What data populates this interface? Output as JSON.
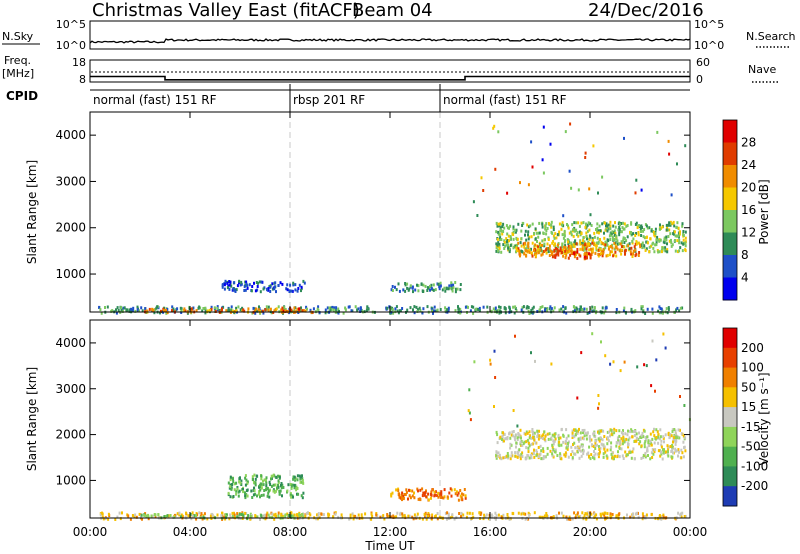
{
  "header": {
    "title": "Christmas Valley East (fitACF)",
    "beam": "Beam 04",
    "date": "24/Dec/2016"
  },
  "nsky_panel": {
    "left_label": "N.Sky",
    "right_label": "N.Search",
    "left_ticks": [
      "10^5",
      "10^0"
    ],
    "right_ticks": [
      "10^5",
      "10^0"
    ]
  },
  "freq_panel": {
    "left_label_line1": "Freq.",
    "left_label_line2": "[MHz]",
    "right_label": "Nave",
    "left_ticks": [
      "18",
      "8"
    ],
    "right_ticks": [
      "60",
      "0"
    ],
    "freq_steps": [
      {
        "t0": 0,
        "t1": 3,
        "mhz": 10.5
      },
      {
        "t0": 3,
        "t1": 15,
        "mhz": 9.0
      },
      {
        "t0": 15,
        "t1": 24,
        "mhz": 10.5
      }
    ]
  },
  "cpid": {
    "label": "CPID",
    "segments": [
      {
        "t0": 0,
        "t1": 8,
        "text": "normal (fast) 151 RF"
      },
      {
        "t0": 8,
        "t1": 14,
        "text": "rbsp 201 RF"
      },
      {
        "t0": 14,
        "t1": 24,
        "text": "normal (fast) 151 RF"
      }
    ]
  },
  "chart_data": [
    {
      "type": "heatmap",
      "quantity": "power",
      "ylabel": "Slant Range [km]",
      "y_ticks": [
        "4000",
        "3000",
        "2000",
        "1000"
      ],
      "ylim": [
        180,
        4500
      ],
      "xlim": [
        0,
        24
      ],
      "colorbar": {
        "label": "Power [dB]",
        "ticks": [
          "28",
          "24",
          "20",
          "16",
          "12",
          "8",
          "4"
        ],
        "colors": [
          "#0000ee",
          "#1e50c8",
          "#2e8b57",
          "#7cc860",
          "#f5c800",
          "#f08c00",
          "#e03c00",
          "#e00000"
        ]
      },
      "regions": [
        {
          "t0": 0.3,
          "t1": 23.8,
          "r0": 180,
          "r1": 330,
          "level": 2
        },
        {
          "t0": 2.0,
          "t1": 9.0,
          "r0": 200,
          "r1": 280,
          "level": 5
        },
        {
          "t0": 7.5,
          "t1": 8.4,
          "r0": 200,
          "r1": 300,
          "level": 6
        },
        {
          "t0": 5.2,
          "t1": 8.6,
          "r0": 650,
          "r1": 880,
          "level": 1
        },
        {
          "t0": 12.0,
          "t1": 14.8,
          "r0": 650,
          "r1": 850,
          "level": 2
        },
        {
          "t0": 16.2,
          "t1": 23.8,
          "r0": 1500,
          "r1": 2150,
          "level": 3
        },
        {
          "t0": 17.0,
          "t1": 22.0,
          "r0": 1400,
          "r1": 1700,
          "level": 5
        },
        {
          "t0": 18.5,
          "t1": 20.0,
          "r0": 1350,
          "r1": 1550,
          "level": 6
        }
      ]
    },
    {
      "type": "heatmap",
      "quantity": "velocity",
      "ylabel": "Slant Range [km]",
      "y_ticks": [
        "4000",
        "3000",
        "2000",
        "1000"
      ],
      "ylim": [
        180,
        4500
      ],
      "xlim": [
        0,
        24
      ],
      "x_ticks": [
        "00:00",
        "04:00",
        "08:00",
        "12:00",
        "16:00",
        "20:00",
        "00:00"
      ],
      "xlabel": "Time UT",
      "colorbar": {
        "label": "Velocity [m s⁻¹]",
        "ticks": [
          "200",
          "100",
          "50",
          "15",
          "-15",
          "-50",
          "-100",
          "-200"
        ],
        "colors": [
          "#1e3cb4",
          "#2e8b57",
          "#4fb04f",
          "#8fd45a",
          "#c8c8c0",
          "#f5c000",
          "#f08000",
          "#e84000",
          "#e00000"
        ]
      },
      "regions": [
        {
          "t0": 0.3,
          "t1": 23.8,
          "r0": 180,
          "r1": 330,
          "level": 5
        },
        {
          "t0": 2.0,
          "t1": 8.5,
          "r0": 200,
          "r1": 300,
          "level": 3
        },
        {
          "t0": 5.5,
          "t1": 8.5,
          "r0": 650,
          "r1": 1150,
          "level": 2
        },
        {
          "t0": 12.0,
          "t1": 15.0,
          "r0": 600,
          "r1": 850,
          "level": 6
        },
        {
          "t0": 16.2,
          "t1": 23.8,
          "r0": 1500,
          "r1": 2150,
          "level": 4
        }
      ]
    }
  ]
}
